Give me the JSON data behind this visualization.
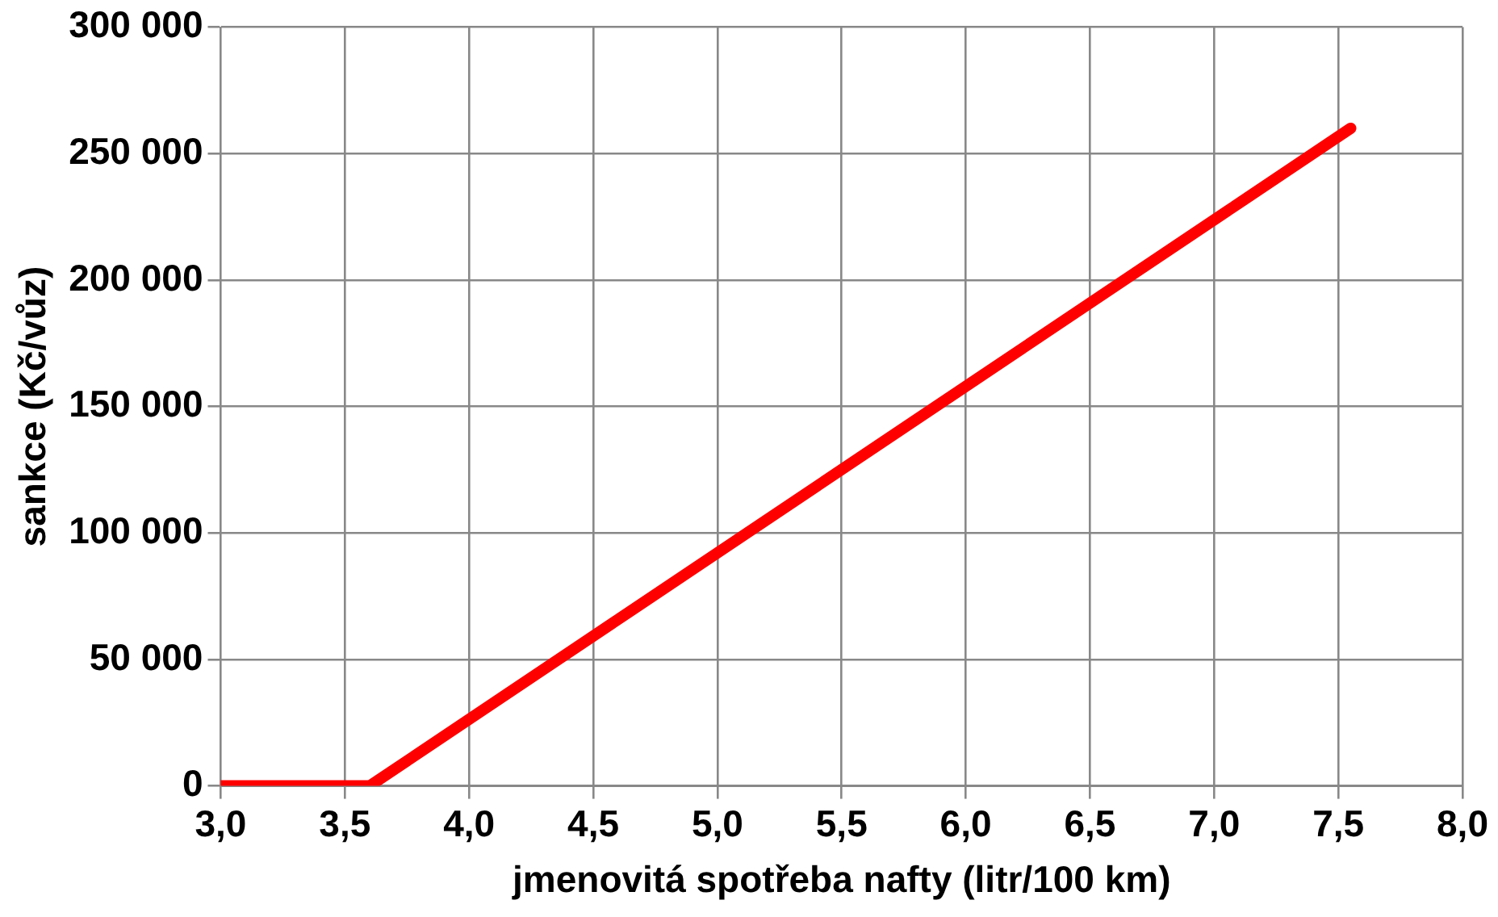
{
  "chart_data": {
    "type": "line",
    "xlabel": "jmenovitá spotřeba nafty (litr/100 km)",
    "ylabel": "sankce (Kč/vůz)",
    "x": [
      3.0,
      3.6,
      7.55
    ],
    "series": [
      {
        "color": "#ff0000",
        "values": [
          0,
          0,
          260000
        ]
      }
    ],
    "xlim": [
      3.0,
      8.0
    ],
    "ylim": [
      0,
      300000
    ],
    "xticks": [
      {
        "value": 3.0,
        "label": "3,0"
      },
      {
        "value": 3.5,
        "label": "3,5"
      },
      {
        "value": 4.0,
        "label": "4,0"
      },
      {
        "value": 4.5,
        "label": "4,5"
      },
      {
        "value": 5.0,
        "label": "5,0"
      },
      {
        "value": 5.5,
        "label": "5,5"
      },
      {
        "value": 6.0,
        "label": "6,0"
      },
      {
        "value": 6.5,
        "label": "6,5"
      },
      {
        "value": 7.0,
        "label": "7,0"
      },
      {
        "value": 7.5,
        "label": "7,5"
      },
      {
        "value": 8.0,
        "label": "8,0"
      }
    ],
    "yticks": [
      0,
      {
        "value": 50000,
        "label": "50 000"
      },
      {
        "value": 100000,
        "label": "100 000"
      },
      {
        "value": 150000,
        "label": "150 000"
      },
      {
        "value": 200000,
        "label": "200 000"
      },
      {
        "value": 250000,
        "label": "250 000"
      },
      {
        "value": 300000,
        "label": "300 000"
      }
    ],
    "grid": true,
    "legend": false,
    "marker": "none",
    "line_style": "solid"
  }
}
